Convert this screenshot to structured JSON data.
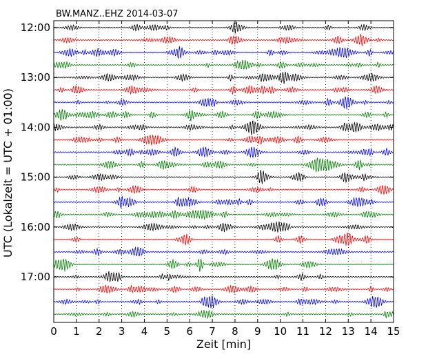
{
  "chart_data": {
    "type": "line",
    "title": "BW.MANZ..EHZ 2014-03-07",
    "xlabel": "Zeit  [min]",
    "ylabel": "UTC (Lokalzeit = UTC + 01:00)",
    "xlim": [
      0,
      15
    ],
    "x_ticks": [
      0,
      1,
      2,
      3,
      4,
      5,
      6,
      7,
      8,
      9,
      10,
      11,
      12,
      13,
      14,
      15
    ],
    "y_ticks": [
      "12:00",
      "13:00",
      "14:00",
      "15:00",
      "16:00",
      "17:00"
    ],
    "grid": "vertical dotted at each minute",
    "trace_interval_minutes": 15,
    "trace_colors": [
      "#000000",
      "#ff0000",
      "#0000ff",
      "#008000"
    ],
    "traces": [
      {
        "start": "12:00"
      },
      {
        "start": "12:15"
      },
      {
        "start": "12:30"
      },
      {
        "start": "12:45"
      },
      {
        "start": "13:00"
      },
      {
        "start": "13:15"
      },
      {
        "start": "13:30"
      },
      {
        "start": "13:45"
      },
      {
        "start": "14:00"
      },
      {
        "start": "14:15"
      },
      {
        "start": "14:30"
      },
      {
        "start": "14:45"
      },
      {
        "start": "15:00"
      },
      {
        "start": "15:15"
      },
      {
        "start": "15:30"
      },
      {
        "start": "15:45"
      },
      {
        "start": "16:00"
      },
      {
        "start": "16:15"
      },
      {
        "start": "16:30"
      },
      {
        "start": "16:45"
      },
      {
        "start": "17:00"
      },
      {
        "start": "17:15"
      },
      {
        "start": "17:30"
      },
      {
        "start": "17:45"
      }
    ]
  }
}
